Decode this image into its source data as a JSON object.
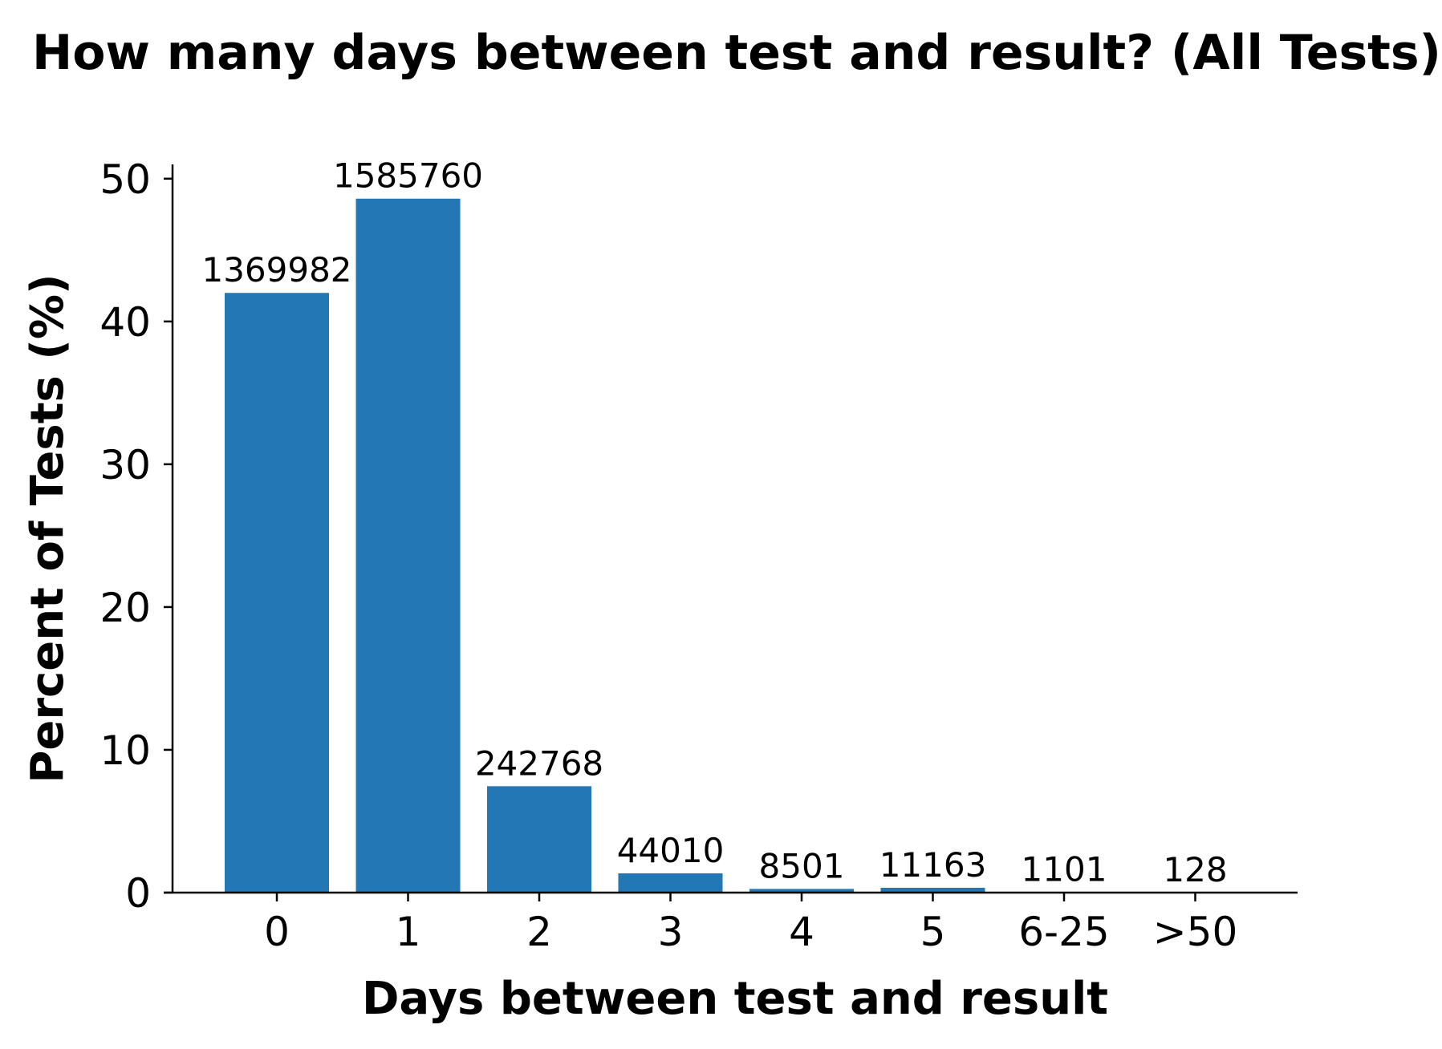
{
  "chart_data": {
    "type": "bar",
    "title": "How many days between test and result? (All Tests)",
    "xlabel": "Days between test and result",
    "ylabel": "Percent of Tests (%)",
    "categories": [
      "0",
      "1",
      "2",
      "3",
      "4",
      "5",
      "6-25",
      ">50"
    ],
    "values": [
      42.0,
      48.6,
      7.45,
      1.35,
      0.26,
      0.34,
      0.03,
      0.004
    ],
    "data_labels": [
      "1369982",
      "1585760",
      "242768",
      "44010",
      "8501",
      "11163",
      "1101",
      "128"
    ],
    "yticks": [
      0,
      10,
      20,
      30,
      40,
      50
    ],
    "ylim": [
      0,
      51
    ],
    "bar_color": "#2377b4",
    "grid": false,
    "legend": "none"
  }
}
